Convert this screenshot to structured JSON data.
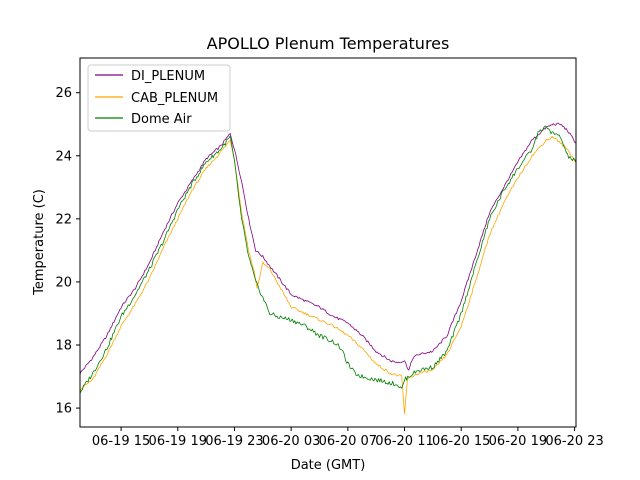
{
  "chart_data": {
    "type": "line",
    "title": "APOLLO Plenum Temperatures",
    "xlabel": "Date (GMT)",
    "ylabel": "Temperature (C)",
    "x_unit": "hours since 06-19 00:00 GMT",
    "xlim": [
      12.1,
      47.1
    ],
    "ylim": [
      15.4,
      27.1
    ],
    "xticks": [
      {
        "value": 15,
        "label": "06-19 15"
      },
      {
        "value": 19,
        "label": "06-19 19"
      },
      {
        "value": 23,
        "label": "06-19 23"
      },
      {
        "value": 27,
        "label": "06-20 03"
      },
      {
        "value": 31,
        "label": "06-20 07"
      },
      {
        "value": 35,
        "label": "06-20 11"
      },
      {
        "value": 39,
        "label": "06-20 15"
      },
      {
        "value": 43,
        "label": "06-20 19"
      },
      {
        "value": 47,
        "label": "06-20 23"
      }
    ],
    "yticks": [
      {
        "value": 16,
        "label": "16"
      },
      {
        "value": 18,
        "label": "18"
      },
      {
        "value": 20,
        "label": "20"
      },
      {
        "value": 22,
        "label": "22"
      },
      {
        "value": 24,
        "label": "24"
      },
      {
        "value": 26,
        "label": "26"
      }
    ],
    "grid": false,
    "legend_position": "top-left",
    "series": [
      {
        "name": "DI_PLENUM",
        "color": "#800080",
        "x": [
          12.1,
          13.0,
          14.0,
          15.0,
          16.0,
          17.0,
          18.0,
          19.0,
          20.0,
          21.0,
          22.0,
          22.7,
          23.0,
          23.5,
          24.0,
          24.5,
          25.0,
          25.5,
          26.0,
          26.5,
          27.0,
          28.0,
          29.0,
          30.0,
          31.0,
          32.0,
          33.0,
          34.0,
          34.5,
          35.0,
          35.3,
          35.6,
          36.0,
          37.0,
          38.0,
          39.0,
          40.0,
          41.0,
          42.0,
          43.0,
          44.0,
          45.0,
          45.5,
          46.0,
          46.5,
          47.1
        ],
        "y": [
          17.1,
          17.6,
          18.3,
          19.2,
          19.8,
          20.6,
          21.6,
          22.5,
          23.2,
          23.9,
          24.3,
          24.7,
          24.2,
          23.2,
          22.0,
          21.0,
          20.8,
          20.5,
          20.2,
          19.9,
          19.6,
          19.4,
          19.2,
          18.9,
          18.7,
          18.3,
          17.8,
          17.5,
          17.45,
          17.5,
          17.2,
          17.6,
          17.7,
          17.8,
          18.3,
          19.4,
          20.8,
          22.2,
          23.0,
          23.8,
          24.5,
          24.9,
          25.0,
          25.0,
          24.8,
          24.4
        ]
      },
      {
        "name": "CAB_PLENUM",
        "color": "#ffa500",
        "x": [
          12.1,
          13.0,
          14.0,
          15.0,
          16.0,
          17.0,
          18.0,
          19.0,
          20.0,
          21.0,
          22.0,
          22.7,
          23.0,
          23.5,
          24.0,
          24.4,
          24.6,
          25.0,
          25.5,
          26.0,
          27.0,
          28.0,
          29.0,
          30.0,
          31.0,
          32.0,
          33.0,
          34.0,
          34.8,
          35.0,
          35.2,
          35.5,
          36.0,
          37.0,
          38.0,
          39.0,
          40.0,
          41.0,
          42.0,
          43.0,
          44.0,
          45.0,
          45.5,
          46.0,
          46.5,
          47.1
        ],
        "y": [
          16.6,
          16.9,
          17.7,
          18.6,
          19.3,
          20.1,
          21.1,
          22.0,
          22.9,
          23.6,
          24.1,
          24.5,
          23.9,
          22.2,
          21.0,
          20.3,
          19.8,
          20.6,
          20.4,
          20.0,
          19.2,
          19.0,
          18.8,
          18.6,
          18.3,
          17.9,
          17.4,
          17.1,
          17.0,
          15.8,
          16.9,
          17.0,
          17.1,
          17.2,
          17.7,
          18.6,
          20.0,
          21.5,
          22.5,
          23.3,
          24.0,
          24.5,
          24.6,
          24.4,
          24.2,
          23.8
        ]
      },
      {
        "name": "Dome Air",
        "color": "#008000",
        "x": [
          12.1,
          13.0,
          14.0,
          15.0,
          16.0,
          17.0,
          18.0,
          19.0,
          20.0,
          21.0,
          22.0,
          22.7,
          23.0,
          23.5,
          24.0,
          24.5,
          25.0,
          25.5,
          26.0,
          27.0,
          28.0,
          29.0,
          30.0,
          30.5,
          31.0,
          31.5,
          32.0,
          33.0,
          34.0,
          34.5,
          34.8,
          35.0,
          35.3,
          35.6,
          36.0,
          37.0,
          38.0,
          39.0,
          40.0,
          41.0,
          42.0,
          43.0,
          44.0,
          44.5,
          45.0,
          45.5,
          46.0,
          46.5,
          47.1
        ],
        "y": [
          16.5,
          17.1,
          17.9,
          18.9,
          19.6,
          20.4,
          21.3,
          22.3,
          23.1,
          23.8,
          24.2,
          24.6,
          23.8,
          22.0,
          20.8,
          20.0,
          19.5,
          19.0,
          18.9,
          18.8,
          18.6,
          18.3,
          18.1,
          17.9,
          17.4,
          17.1,
          17.0,
          16.9,
          16.8,
          16.75,
          16.6,
          16.9,
          17.0,
          17.1,
          17.2,
          17.3,
          17.8,
          19.0,
          20.5,
          22.0,
          22.9,
          23.6,
          24.2,
          24.8,
          24.9,
          24.7,
          24.6,
          24.0,
          23.8
        ]
      }
    ]
  }
}
